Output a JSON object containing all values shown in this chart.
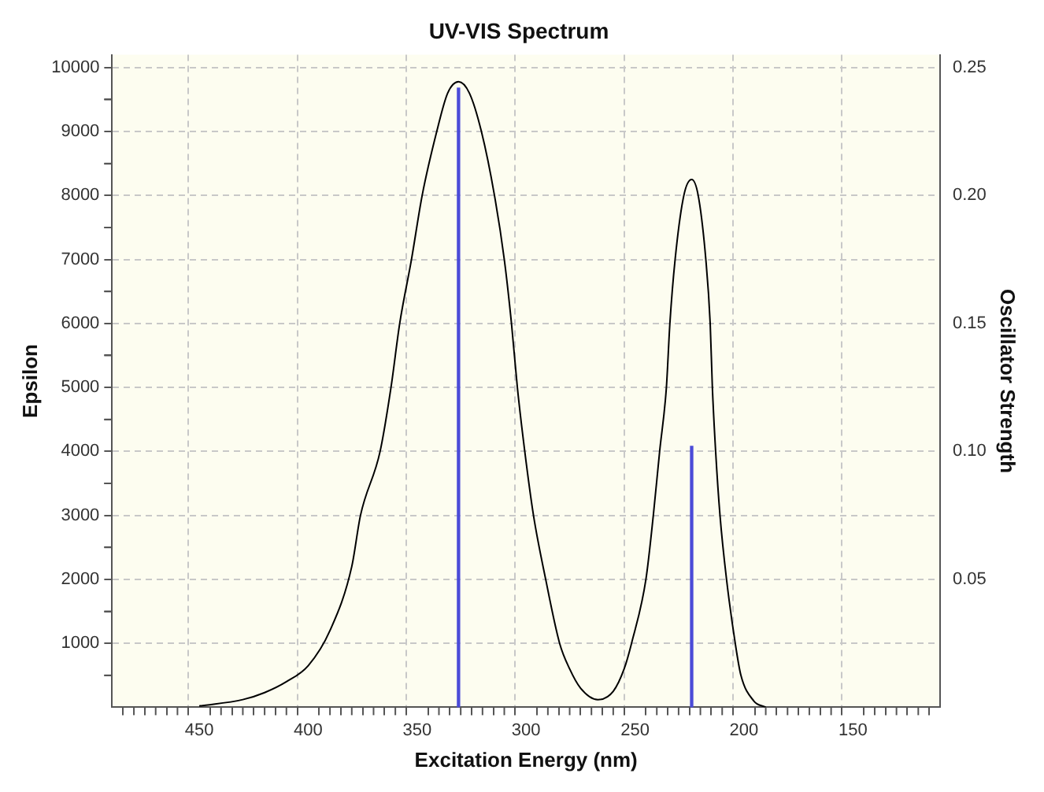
{
  "chart_data": {
    "type": "line",
    "title": "UV-VIS Spectrum",
    "xlabel": "Excitation Energy (nm)",
    "ylabel": "Epsilon",
    "y2label": "Oscillator Strength",
    "xlim": [
      490,
      110
    ],
    "ylim": [
      0,
      10200
    ],
    "y2lim": [
      0,
      0.255
    ],
    "xticks": [
      {
        "value": 480,
        "label": null
      },
      {
        "value": 470,
        "label": null
      },
      {
        "value": 460,
        "label": null
      },
      450,
      {
        "value": 440,
        "label": null
      },
      {
        "value": 430,
        "label": null
      },
      {
        "value": 420,
        "label": null
      },
      {
        "value": 410,
        "label": null
      },
      400,
      {
        "value": 390,
        "label": null
      },
      {
        "value": 380,
        "label": null
      },
      {
        "value": 370,
        "label": null
      },
      {
        "value": 360,
        "label": null
      },
      350,
      {
        "value": 340,
        "label": null
      },
      {
        "value": 330,
        "label": null
      },
      {
        "value": 320,
        "label": null
      },
      {
        "value": 310,
        "label": null
      },
      300,
      {
        "value": 290,
        "label": null
      },
      {
        "value": 280,
        "label": null
      },
      {
        "value": 270,
        "label": null
      },
      {
        "value": 260,
        "label": null
      },
      250,
      {
        "value": 240,
        "label": null
      },
      {
        "value": 230,
        "label": null
      },
      {
        "value": 220,
        "label": null
      },
      {
        "value": 210,
        "label": null
      },
      200,
      {
        "value": 190,
        "label": null
      },
      {
        "value": 180,
        "label": null
      },
      {
        "value": 170,
        "label": null
      },
      {
        "value": 160,
        "label": null
      },
      150,
      {
        "value": 140,
        "label": null
      },
      {
        "value": 130,
        "label": null
      },
      {
        "value": 120,
        "label": null
      }
    ],
    "yticks": [
      {
        "value": 500,
        "label": null
      },
      1000,
      {
        "value": 1500,
        "label": null
      },
      2000,
      {
        "value": 2500,
        "label": null
      },
      3000,
      {
        "value": 3500,
        "label": null
      },
      4000,
      {
        "value": 4500,
        "label": null
      },
      5000,
      {
        "value": 5500,
        "label": null
      },
      6000,
      {
        "value": 6500,
        "label": null
      },
      7000,
      {
        "value": 7500,
        "label": null
      },
      8000,
      {
        "value": 8500,
        "label": null
      },
      9000,
      {
        "value": 9500,
        "label": null
      },
      10000
    ],
    "y2ticks": [
      0.05,
      {
        "value": 0.1,
        "label": "0.10"
      },
      0.15,
      {
        "value": 0.2,
        "label": "0.20"
      },
      0.25
    ],
    "grid": true,
    "legend": false,
    "marker": "none",
    "line_style": "solid",
    "series": [
      {
        "color": "#000000",
        "x": [
          450,
          430,
          420,
          410,
          400,
          390,
          380,
          376,
          367,
          362,
          358,
          352.6,
          347.7,
          341,
          336,
          331,
          326,
          320.5,
          314.5,
          310,
          306.7,
          304,
          300.6,
          296.6,
          291,
          284.6,
          280,
          275,
          267,
          260,
          255,
          251.6,
          245,
          241.6,
          238.7,
          235.6,
          234,
          231.6,
          227.6,
          224,
          221,
          217.5,
          215.5,
          214.5,
          213,
          211,
          208,
          204,
          201.4,
          195.5,
          190
        ],
        "values": [
          20,
          120,
          230,
          400,
          650,
          1200,
          2200,
          3000,
          4000,
          5000,
          6000,
          7000,
          8000,
          9000,
          9600,
          9780,
          9600,
          9000,
          8000,
          7000,
          6000,
          5000,
          4000,
          3000,
          2000,
          1000,
          600,
          300,
          120,
          250,
          600,
          1000,
          2000,
          3000,
          4000,
          5000,
          6000,
          7000,
          8000,
          8250,
          8000,
          7000,
          6000,
          5000,
          4000,
          3000,
          2000,
          1000,
          500,
          100,
          0
        ]
      },
      {
        "type": "bar",
        "axis": "y2",
        "color": "#4b4bd8",
        "x": [
          331,
          224
        ],
        "values": [
          0.242,
          0.102
        ]
      }
    ]
  }
}
